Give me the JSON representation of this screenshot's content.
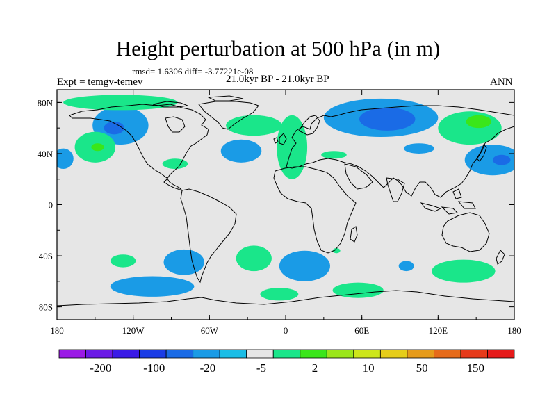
{
  "title": "Height perturbation at 500 hPa (in m)",
  "stats": "rmsd= 1.6306  diff= -3.77221e-08",
  "experiment": "Expt = temgv-temev",
  "period": "21.0kyr BP - 21.0kyr BP",
  "season": "ANN",
  "map": {
    "projection": "cylindrical-equidistant",
    "lon_range": [
      -180,
      180
    ],
    "lat_range": [
      -90,
      90
    ],
    "background": "#e6e6e6",
    "lat_ticks": [
      {
        "value": 80,
        "label": "80N"
      },
      {
        "value": 40,
        "label": "40N"
      },
      {
        "value": 0,
        "label": "0"
      },
      {
        "value": -40,
        "label": "40S"
      },
      {
        "value": -80,
        "label": "80S"
      }
    ],
    "lon_ticks": [
      {
        "value": -180,
        "label": "180"
      },
      {
        "value": -120,
        "label": "120W"
      },
      {
        "value": -60,
        "label": "60W"
      },
      {
        "value": 0,
        "label": "0"
      },
      {
        "value": 60,
        "label": "60E"
      },
      {
        "value": 120,
        "label": "120E"
      },
      {
        "value": 180,
        "label": "180"
      }
    ]
  },
  "colorbar": {
    "colors": [
      "#9b1ae6",
      "#6b1ae6",
      "#3a1ae6",
      "#1a3ce6",
      "#1a6be6",
      "#1a9be6",
      "#1abde6",
      "#e6e6e6",
      "#1ae68a",
      "#3ae61a",
      "#9be61a",
      "#cde61a",
      "#e6cd1a",
      "#e69b1a",
      "#e66b1a",
      "#e63a1a",
      "#e61a1a"
    ],
    "labels": [
      "-200",
      "-100",
      "-20",
      "-5",
      "2",
      "10",
      "50",
      "150"
    ]
  },
  "anomalies": [
    {
      "name": "arctic-canada-negative",
      "lon": -130,
      "lat": 62,
      "rx": 22,
      "ry": 15,
      "level": 5
    },
    {
      "name": "arctic-canada-negative-core",
      "lon": -135,
      "lat": 60,
      "rx": 8,
      "ry": 5,
      "level": 4
    },
    {
      "name": "north-pacific-positive",
      "lon": -150,
      "lat": 45,
      "rx": 16,
      "ry": 12,
      "level": 8
    },
    {
      "name": "north-pacific-positive-core",
      "lon": -148,
      "lat": 45,
      "rx": 5,
      "ry": 3,
      "level": 9
    },
    {
      "name": "dateline-west-negative",
      "lon": -175,
      "lat": 36,
      "rx": 8,
      "ry": 8,
      "level": 5
    },
    {
      "name": "arctic-positive-strip",
      "lon": -130,
      "lat": 80,
      "rx": 45,
      "ry": 6,
      "level": 8
    },
    {
      "name": "atlantic-positive",
      "lon": -25,
      "lat": 62,
      "rx": 22,
      "ry": 8,
      "level": 8
    },
    {
      "name": "mid-atlantic-negative",
      "lon": -35,
      "lat": 42,
      "rx": 16,
      "ry": 9,
      "level": 5
    },
    {
      "name": "us-east-positive",
      "lon": -87,
      "lat": 32,
      "rx": 10,
      "ry": 4,
      "level": 8
    },
    {
      "name": "north-atlantic-positive",
      "lon": 5,
      "lat": 45,
      "rx": 12,
      "ry": 25,
      "level": 8
    },
    {
      "name": "siberia-negative",
      "lon": 75,
      "lat": 68,
      "rx": 45,
      "ry": 15,
      "level": 5
    },
    {
      "name": "siberia-negative-core",
      "lon": 80,
      "lat": 67,
      "rx": 22,
      "ry": 9,
      "level": 4
    },
    {
      "name": "east-asia-positive",
      "lon": 145,
      "lat": 60,
      "rx": 25,
      "ry": 13,
      "level": 8
    },
    {
      "name": "east-asia-positive-core",
      "lon": 152,
      "lat": 65,
      "rx": 10,
      "ry": 5,
      "level": 9
    },
    {
      "name": "west-pacific-negative",
      "lon": 163,
      "lat": 35,
      "rx": 22,
      "ry": 12,
      "level": 5
    },
    {
      "name": "west-pacific-negative-core",
      "lon": 170,
      "lat": 35,
      "rx": 7,
      "ry": 4,
      "level": 4
    },
    {
      "name": "central-asia-negative",
      "lon": 105,
      "lat": 44,
      "rx": 12,
      "ry": 4,
      "level": 5
    },
    {
      "name": "west-asia-positive",
      "lon": 38,
      "lat": 39,
      "rx": 10,
      "ry": 3,
      "level": 8
    },
    {
      "name": "south-pacific-positive",
      "lon": -128,
      "lat": -44,
      "rx": 10,
      "ry": 5,
      "level": 8
    },
    {
      "name": "south-america-negative",
      "lon": -80,
      "lat": -45,
      "rx": 16,
      "ry": 10,
      "level": 5
    },
    {
      "name": "south-pacific-negative-band",
      "lon": -105,
      "lat": -64,
      "rx": 33,
      "ry": 8,
      "level": 5
    },
    {
      "name": "south-atlantic-positive",
      "lon": -25,
      "lat": -42,
      "rx": 14,
      "ry": 10,
      "level": 8
    },
    {
      "name": "southern-ocean-positive",
      "lon": -5,
      "lat": -70,
      "rx": 15,
      "ry": 5,
      "level": 8
    },
    {
      "name": "south-indian-negative",
      "lon": 15,
      "lat": -48,
      "rx": 20,
      "ry": 12,
      "level": 5
    },
    {
      "name": "southern-africa-positive",
      "lon": 40,
      "lat": -36,
      "rx": 3,
      "ry": 2,
      "level": 8
    },
    {
      "name": "southern-ocean-indian-positive",
      "lon": 57,
      "lat": -67,
      "rx": 20,
      "ry": 6,
      "level": 8
    },
    {
      "name": "indian-ocean-negative",
      "lon": 95,
      "lat": -48,
      "rx": 6,
      "ry": 4,
      "level": 5
    },
    {
      "name": "south-australia-positive",
      "lon": 140,
      "lat": -52,
      "rx": 25,
      "ry": 9,
      "level": 8
    }
  ]
}
